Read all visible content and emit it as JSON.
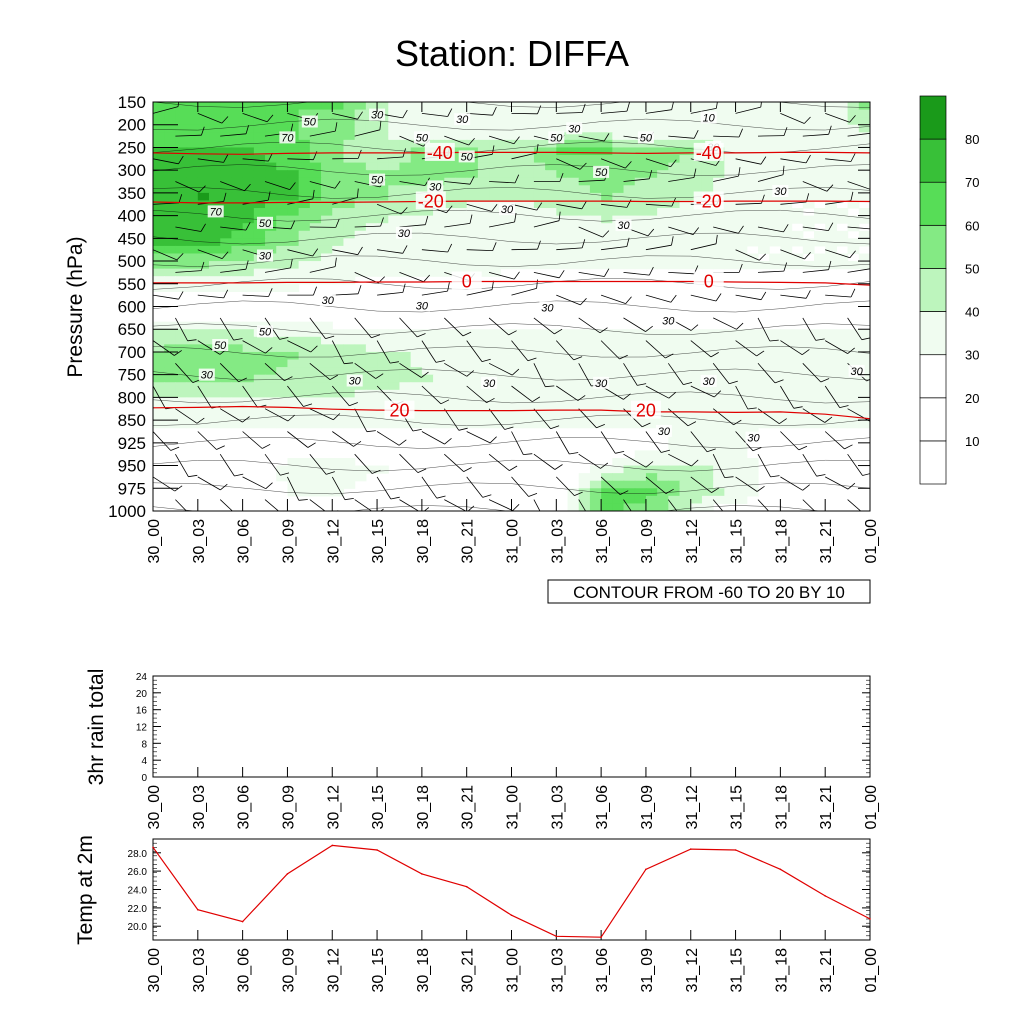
{
  "title": "Station: DIFFA",
  "colors": {
    "axis": "#000000",
    "temp_contour": "#e00000",
    "temp_line": "#e00000",
    "rh_levels": [
      "#ffffff",
      "#ffffff",
      "#ffffff",
      "#f0fcf0",
      "#bdf5bd",
      "#84ea84",
      "#57dd57",
      "#38c038",
      "#1a9a1a"
    ]
  },
  "chart_data": [
    {
      "id": "meteogram",
      "type": "heatmap",
      "title": "Station: DIFFA",
      "ylabel": "Pressure (hPa)",
      "xlabel": "",
      "x_ticks": [
        "30_00",
        "30_03",
        "30_06",
        "30_09",
        "30_12",
        "30_15",
        "30_18",
        "30_21",
        "31_00",
        "31_03",
        "31_06",
        "31_09",
        "31_12",
        "31_15",
        "31_18",
        "31_21",
        "01_00"
      ],
      "y_ticks": [
        "150",
        "200",
        "250",
        "300",
        "350",
        "400",
        "450",
        "500",
        "550",
        "600",
        "650",
        "700",
        "750",
        "800",
        "850",
        "925",
        "950",
        "975",
        "1000"
      ],
      "info_label": "CONTOUR FROM -60 TO 20 BY 10",
      "colorbar": {
        "labels": [
          "10",
          "20",
          "30",
          "40",
          "50",
          "60",
          "70",
          "80"
        ],
        "bins": 9
      },
      "rh_field": [
        [
          60,
          60,
          60,
          60,
          60,
          40,
          30,
          30,
          30,
          30,
          30,
          30,
          30,
          30,
          30,
          30,
          60
        ],
        [
          60,
          60,
          65,
          60,
          55,
          40,
          30,
          30,
          30,
          30,
          30,
          30,
          30,
          30,
          30,
          30,
          45
        ],
        [
          70,
          70,
          70,
          65,
          50,
          40,
          55,
          50,
          45,
          60,
          60,
          55,
          50,
          35,
          30,
          30,
          30
        ],
        [
          75,
          75,
          75,
          70,
          55,
          50,
          55,
          50,
          45,
          50,
          55,
          50,
          45,
          35,
          30,
          30,
          30
        ],
        [
          78,
          80,
          75,
          70,
          55,
          50,
          45,
          42,
          40,
          45,
          50,
          45,
          40,
          35,
          30,
          30,
          30
        ],
        [
          75,
          78,
          70,
          55,
          45,
          40,
          38,
          35,
          35,
          38,
          40,
          38,
          35,
          32,
          30,
          30,
          30
        ],
        [
          72,
          72,
          65,
          50,
          40,
          35,
          35,
          35,
          32,
          35,
          35,
          35,
          32,
          30,
          30,
          30,
          30
        ],
        [
          50,
          50,
          45,
          40,
          38,
          35,
          35,
          33,
          32,
          32,
          32,
          32,
          30,
          30,
          30,
          30,
          30
        ],
        [
          35,
          35,
          32,
          30,
          28,
          25,
          25,
          25,
          25,
          25,
          25,
          25,
          25,
          25,
          25,
          25,
          25
        ],
        [
          20,
          20,
          20,
          20,
          20,
          20,
          20,
          20,
          20,
          20,
          20,
          20,
          20,
          20,
          20,
          20,
          20
        ],
        [
          40,
          40,
          40,
          38,
          35,
          32,
          30,
          30,
          30,
          30,
          30,
          30,
          30,
          30,
          30,
          30,
          30
        ],
        [
          55,
          56,
          55,
          50,
          45,
          42,
          38,
          35,
          32,
          32,
          32,
          31,
          30,
          30,
          30,
          30,
          30
        ],
        [
          50,
          55,
          50,
          48,
          45,
          42,
          40,
          35,
          32,
          32,
          32,
          32,
          32,
          31,
          30,
          30,
          30
        ],
        [
          35,
          36,
          35,
          36,
          38,
          38,
          35,
          33,
          32,
          32,
          32,
          32,
          32,
          32,
          32,
          31,
          30
        ],
        [
          30,
          30,
          30,
          31,
          32,
          32,
          32,
          32,
          32,
          32,
          32,
          32,
          32,
          32,
          32,
          31,
          30
        ],
        [
          20,
          20,
          22,
          24,
          24,
          22,
          20,
          20,
          20,
          20,
          20,
          25,
          35,
          30,
          22,
          20,
          20
        ],
        [
          20,
          20,
          20,
          35,
          35,
          30,
          20,
          20,
          20,
          20,
          35,
          45,
          42,
          35,
          20,
          20,
          20
        ],
        [
          20,
          20,
          20,
          32,
          30,
          25,
          20,
          20,
          20,
          20,
          65,
          62,
          45,
          35,
          20,
          20,
          20
        ],
        [
          20,
          20,
          20,
          20,
          20,
          20,
          20,
          20,
          20,
          20,
          60,
          55,
          30,
          20,
          20,
          20,
          20
        ]
      ],
      "temp_contours": [
        {
          "level": "-40",
          "pressure": [
            262,
            264,
            265,
            263,
            262,
            262,
            262,
            261,
            261,
            261,
            262,
            263,
            262,
            262,
            261,
            261,
            262
          ]
        },
        {
          "level": "-20",
          "pressure": [
            370,
            372,
            372,
            371,
            371,
            370,
            369,
            368,
            368,
            368,
            368,
            369,
            369,
            368,
            368,
            368,
            369
          ]
        },
        {
          "level": "0",
          "pressure": [
            548,
            548,
            548,
            547,
            547,
            546,
            546,
            545,
            545,
            545,
            545,
            545,
            545,
            546,
            547,
            548,
            553
          ]
        },
        {
          "level": "20",
          "pressure": [
            823,
            822,
            820,
            822,
            826,
            828,
            829,
            829,
            829,
            828,
            828,
            832,
            832,
            833,
            832,
            837,
            847
          ]
        }
      ],
      "temp_contour_labels": [
        {
          "text": "-40",
          "x_index": 6.4,
          "pressure": 262
        },
        {
          "text": "-40",
          "x_index": 12.4,
          "pressure": 262
        },
        {
          "text": "-20",
          "x_index": 6.2,
          "pressure": 369
        },
        {
          "text": "-20",
          "x_index": 12.4,
          "pressure": 369
        },
        {
          "text": "0",
          "x_index": 7.0,
          "pressure": 545
        },
        {
          "text": "0",
          "x_index": 12.4,
          "pressure": 545
        },
        {
          "text": "20",
          "x_index": 5.5,
          "pressure": 829
        },
        {
          "text": "20",
          "x_index": 11.0,
          "pressure": 829
        }
      ],
      "rh_contour_labels": [
        {
          "text": "10",
          "x_index": 12.4,
          "pressure": 186
        },
        {
          "text": "30",
          "x_index": 5.0,
          "pressure": 180
        },
        {
          "text": "30",
          "x_index": 6.9,
          "pressure": 190
        },
        {
          "text": "30",
          "x_index": 9.4,
          "pressure": 210
        },
        {
          "text": "30",
          "x_index": 12.5,
          "pressure": 251
        },
        {
          "text": "30",
          "x_index": 6.3,
          "pressure": 338
        },
        {
          "text": "30",
          "x_index": 14.0,
          "pressure": 348
        },
        {
          "text": "30",
          "x_index": 7.9,
          "pressure": 388
        },
        {
          "text": "30",
          "x_index": 10.5,
          "pressure": 423
        },
        {
          "text": "30",
          "x_index": 5.6,
          "pressure": 440
        },
        {
          "text": "30",
          "x_index": 2.5,
          "pressure": 490
        },
        {
          "text": "30",
          "x_index": 3.9,
          "pressure": 588
        },
        {
          "text": "30",
          "x_index": 6.0,
          "pressure": 600
        },
        {
          "text": "30",
          "x_index": 8.8,
          "pressure": 604
        },
        {
          "text": "30",
          "x_index": 11.5,
          "pressure": 633
        },
        {
          "text": "30",
          "x_index": 1.2,
          "pressure": 752
        },
        {
          "text": "30",
          "x_index": 4.5,
          "pressure": 765
        },
        {
          "text": "30",
          "x_index": 7.5,
          "pressure": 770
        },
        {
          "text": "30",
          "x_index": 10.0,
          "pressure": 770
        },
        {
          "text": "30",
          "x_index": 12.4,
          "pressure": 766
        },
        {
          "text": "30",
          "x_index": 15.7,
          "pressure": 744
        },
        {
          "text": "30",
          "x_index": 11.4,
          "pressure": 889
        },
        {
          "text": "30",
          "x_index": 13.4,
          "pressure": 911
        },
        {
          "text": "50",
          "x_index": 3.5,
          "pressure": 195
        },
        {
          "text": "50",
          "x_index": 6.0,
          "pressure": 230
        },
        {
          "text": "50",
          "x_index": 9.0,
          "pressure": 230
        },
        {
          "text": "50",
          "x_index": 11.0,
          "pressure": 230
        },
        {
          "text": "50",
          "x_index": 7.0,
          "pressure": 272
        },
        {
          "text": "50",
          "x_index": 10.0,
          "pressure": 306
        },
        {
          "text": "50",
          "x_index": 5.0,
          "pressure": 323
        },
        {
          "text": "50",
          "x_index": 2.5,
          "pressure": 418
        },
        {
          "text": "50",
          "x_index": 2.5,
          "pressure": 657
        },
        {
          "text": "50",
          "x_index": 1.5,
          "pressure": 687
        },
        {
          "text": "70",
          "x_index": 3.0,
          "pressure": 230
        },
        {
          "text": "70",
          "x_index": 1.4,
          "pressure": 393
        }
      ]
    },
    {
      "id": "rain",
      "type": "line",
      "ylabel": "3hr rain total",
      "xlabel": "",
      "ylim": [
        0,
        24
      ],
      "y_ticks": [
        "0",
        "4",
        "8",
        "12",
        "16",
        "20",
        "24"
      ],
      "x_ticks": [
        "30_00",
        "30_03",
        "30_06",
        "30_09",
        "30_12",
        "30_15",
        "30_18",
        "30_21",
        "31_00",
        "31_03",
        "31_06",
        "31_09",
        "31_12",
        "31_15",
        "31_18",
        "31_21",
        "01_00"
      ],
      "values": []
    },
    {
      "id": "temp2m",
      "type": "line",
      "ylabel": "Temp at 2m",
      "xlabel": "",
      "ylim": [
        18.5,
        29.5
      ],
      "y_ticks": [
        "20.0",
        "22.0",
        "24.0",
        "26.0",
        "28.0"
      ],
      "x_ticks": [
        "30_00",
        "30_03",
        "30_06",
        "30_09",
        "30_12",
        "30_15",
        "30_18",
        "30_21",
        "31_00",
        "31_03",
        "31_06",
        "31_09",
        "31_12",
        "31_15",
        "31_18",
        "31_21",
        "01_00"
      ],
      "values": [
        28.6,
        21.8,
        20.5,
        25.7,
        28.8,
        28.3,
        25.7,
        24.3,
        21.2,
        18.9,
        18.8,
        26.2,
        28.4,
        28.3,
        26.2,
        23.3,
        20.8
      ]
    }
  ]
}
